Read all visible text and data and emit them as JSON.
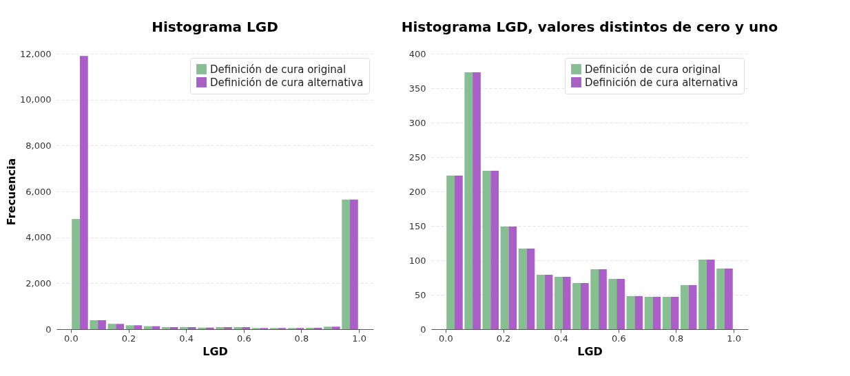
{
  "chart_data": [
    {
      "type": "histogram",
      "title": "Histograma LGD",
      "xlabel": "LGD",
      "ylabel": "Frecuencia",
      "bins": [
        0,
        0.0625,
        0.125,
        0.1875,
        0.25,
        0.3125,
        0.375,
        0.4375,
        0.5,
        0.5625,
        0.625,
        0.6875,
        0.75,
        0.8125,
        0.875,
        0.9375,
        1
      ],
      "series": [
        {
          "name": "Definición de cura original",
          "color": "#86bf91",
          "values": [
            4800,
            390,
            230,
            170,
            130,
            90,
            90,
            70,
            90,
            90,
            50,
            50,
            50,
            60,
            110,
            5650
          ]
        },
        {
          "name": "Definición de cura alternativa",
          "color": "#a95fc6",
          "values": [
            11900,
            390,
            230,
            170,
            130,
            90,
            90,
            70,
            90,
            90,
            50,
            50,
            50,
            60,
            110,
            5650
          ]
        }
      ],
      "xlim": [
        -0.05,
        1.05
      ],
      "xticks": [
        {
          "value": 0,
          "label": "0.0"
        },
        {
          "value": 0.2,
          "label": "0.2"
        },
        {
          "value": 0.4,
          "label": "0.4"
        },
        {
          "value": 0.6,
          "label": "0.6"
        },
        {
          "value": 0.8,
          "label": "0.8"
        },
        {
          "value": 1,
          "label": "1.0"
        }
      ],
      "ylim": [
        0,
        12000
      ],
      "yticks": [
        0,
        {
          "value": 2000,
          "label": "2,000"
        },
        {
          "value": 4000,
          "label": "4,000"
        },
        {
          "value": 6000,
          "label": "6,000"
        },
        {
          "value": 8000,
          "label": "8,000"
        },
        {
          "value": 10000,
          "label": "10,000"
        },
        {
          "value": 12000,
          "label": "12,000"
        }
      ],
      "grid": "y",
      "legend": "top right"
    },
    {
      "type": "histogram",
      "title": "Histograma LGD, valores distintos de cero y uno",
      "xlabel": "LGD",
      "bins": [
        0,
        0.0625,
        0.125,
        0.1875,
        0.25,
        0.3125,
        0.375,
        0.4375,
        0.5,
        0.5625,
        0.625,
        0.6875,
        0.75,
        0.8125,
        0.875,
        0.9375,
        1
      ],
      "series": [
        {
          "name": "Definición de cura original",
          "color": "#86bf91",
          "values": [
            223,
            373,
            230,
            149,
            117,
            79,
            76,
            67,
            87,
            73,
            48,
            47,
            47,
            64,
            101,
            88
          ]
        },
        {
          "name": "Definición de cura alternativa",
          "color": "#a95fc6",
          "values": [
            223,
            373,
            230,
            149,
            117,
            79,
            76,
            67,
            87,
            73,
            48,
            47,
            47,
            64,
            101,
            88
          ]
        }
      ],
      "xlim": [
        -0.05,
        1.05
      ],
      "xticks": [
        {
          "value": 0,
          "label": "0.0"
        },
        {
          "value": 0.2,
          "label": "0.2"
        },
        {
          "value": 0.4,
          "label": "0.4"
        },
        {
          "value": 0.6,
          "label": "0.6"
        },
        {
          "value": 0.8,
          "label": "0.8"
        },
        {
          "value": 1,
          "label": "1.0"
        }
      ],
      "ylim": [
        0,
        400
      ],
      "yticks": [
        0,
        50,
        100,
        150,
        200,
        250,
        300,
        350,
        400
      ],
      "grid": "y",
      "legend": "top right"
    }
  ]
}
